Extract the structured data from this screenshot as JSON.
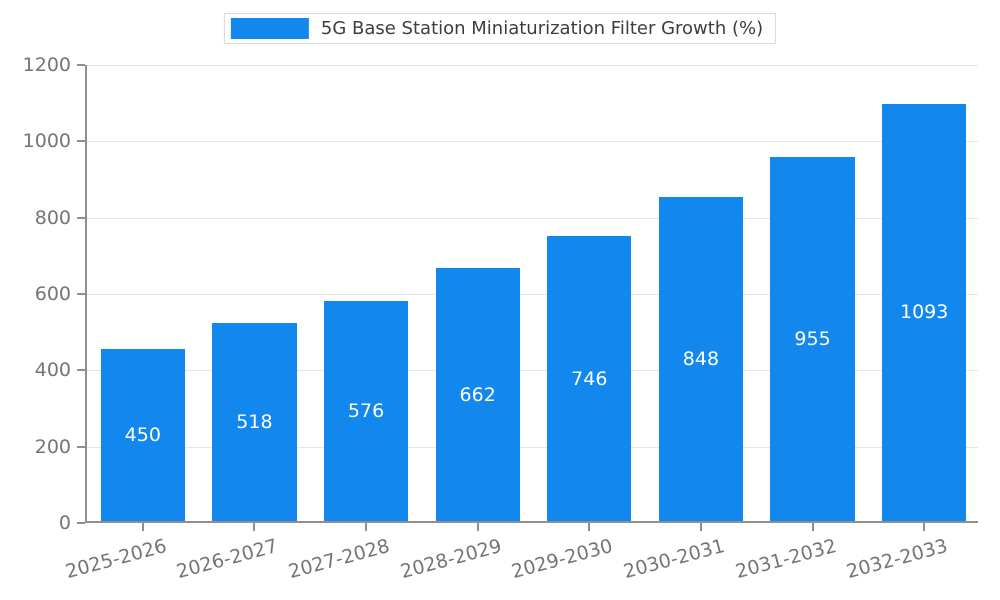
{
  "chart_data": {
    "type": "bar",
    "title": "5G Base Station Miniaturization Filter Growth (%)",
    "categories": [
      "2025-2026",
      "2026-2027",
      "2027-2028",
      "2028-2029",
      "2029-2030",
      "2030-2031",
      "2031-2032",
      "2032-2033"
    ],
    "values": [
      450,
      518,
      576,
      662,
      746,
      848,
      955,
      1093
    ],
    "value_labels": [
      "450",
      "518",
      "576",
      "662",
      "746",
      "848",
      "955",
      "1093"
    ],
    "ytick_labels": [
      "0",
      "200",
      "400",
      "600",
      "800",
      "1000",
      "1200"
    ],
    "yticks": [
      0,
      200,
      400,
      600,
      800,
      1000,
      1200
    ],
    "ylim": [
      0,
      1200
    ],
    "xlabel": "",
    "ylabel": "",
    "legend_position": "top-center",
    "grid": "horizontal",
    "bar_color": "#1287ee",
    "value_label_color": "#ffffff",
    "tick_label_color": "#757575",
    "title_color": "#3d3d3d"
  }
}
